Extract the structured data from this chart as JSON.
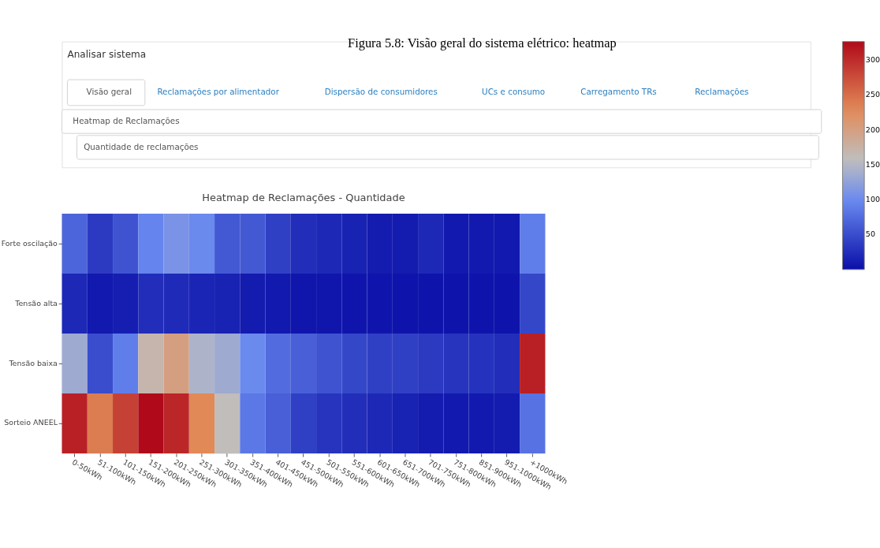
{
  "chart_data": {
    "type": "heatmap",
    "title": "Heatmap de Reclamações - Quantidade",
    "annotations": [
      "Figura 5.8: Visão geral do sistema elétrico: heatmap",
      "Analisar sistema",
      "Visão geral",
      "Reclamações por alimentador",
      "Dispersão de consumidores",
      "UCs e consumo",
      "Carregamento TRs",
      "Reclamações",
      "Heatmap de Reclamações",
      "Quantidade de reclamações"
    ],
    "categories": [
      "0-50kWh",
      "51-100kWh",
      "101-150kWh",
      "151-200kWh",
      "201-250kWh",
      "251-300kWh",
      "301-350kWh",
      "351-400kWh",
      "401-450kWh",
      "451-500kWh",
      "501-550kWh",
      "551-600kWh",
      "601-650kWh",
      "651-700kWh",
      "701-750kWh",
      "751-800kWh",
      "851-900kWh",
      "951-1000kWh",
      "+1000kWh"
    ],
    "y_categories": [
      "Forte oscilação",
      "Tensão alta",
      "Tensão baixa",
      "Sorteio ANEEL"
    ],
    "cells": [
      [
        70,
        35,
        55,
        95,
        110,
        100,
        60,
        60,
        40,
        25,
        20,
        15,
        10,
        10,
        20,
        8,
        8,
        8,
        90
      ],
      [
        20,
        8,
        12,
        25,
        22,
        18,
        15,
        10,
        8,
        6,
        6,
        5,
        5,
        4,
        4,
        4,
        4,
        4,
        45
      ],
      [
        135,
        50,
        90,
        170,
        200,
        145,
        135,
        100,
        75,
        65,
        55,
        45,
        40,
        40,
        35,
        30,
        28,
        25,
        310
      ],
      [
        310,
        240,
        285,
        327,
        305,
        230,
        160,
        85,
        65,
        40,
        30,
        25,
        20,
        15,
        10,
        8,
        8,
        10,
        80
      ]
    ],
    "clim": [
      0,
      327
    ],
    "cticks": [
      50,
      100,
      150,
      200,
      250,
      300
    ]
  }
}
